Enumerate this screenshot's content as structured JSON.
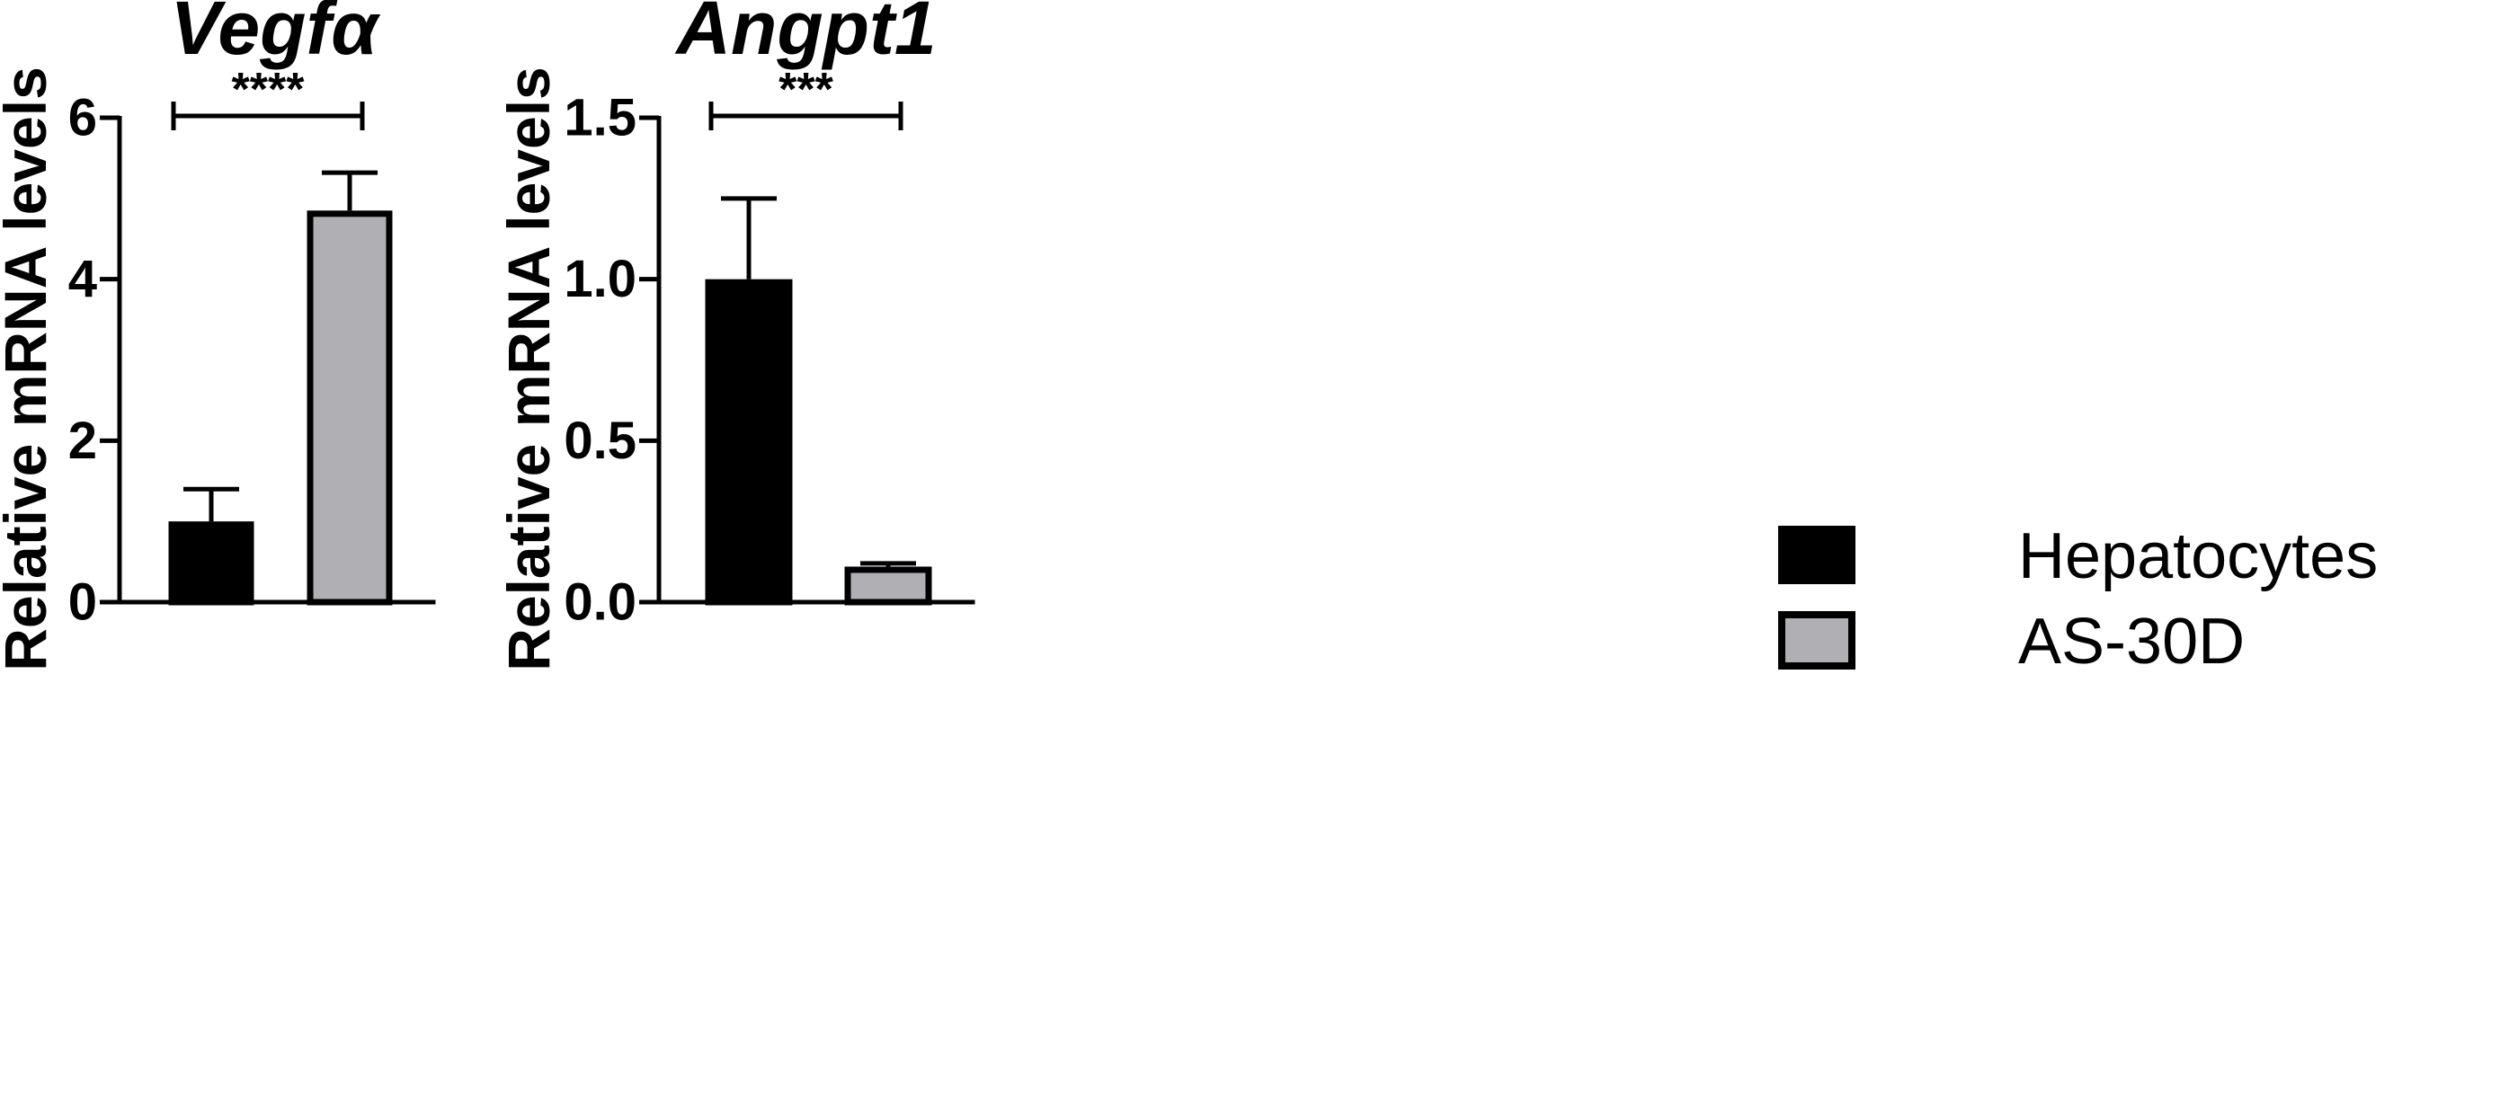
{
  "colors": {
    "Hepatocytes": "#000000",
    "AS-30D": "#b0b0b4",
    "axis": "#000000"
  },
  "legend": {
    "placement": "right",
    "items": [
      {
        "label": "Hepatocytes",
        "color": "#000000"
      },
      {
        "label": "AS-30D",
        "color": "#b0b0b4"
      }
    ]
  },
  "chart_data": [
    {
      "type": "bar",
      "title": "Vegfα",
      "xlabel": "",
      "ylabel": "Relative mRNA levels",
      "ylim": [
        0,
        6
      ],
      "yticks": [
        0,
        2,
        4,
        6
      ],
      "ytick_labels": [
        "0",
        "2",
        "4",
        "6"
      ],
      "categories": [
        "Hepatocytes",
        "AS-30D"
      ],
      "values": [
        1.0,
        4.85
      ],
      "errors": [
        0.4,
        0.47
      ],
      "significance": {
        "label": "****",
        "between": [
          "Hepatocytes",
          "AS-30D"
        ],
        "y": 6
      }
    },
    {
      "type": "bar",
      "title": "Angpt1",
      "xlabel": "",
      "ylabel": "Relative mRNA levels",
      "ylim": [
        0,
        1.5
      ],
      "yticks": [
        0,
        0.5,
        1.0,
        1.5
      ],
      "ytick_labels": [
        "0.0",
        "0.5",
        "1.0",
        "1.5"
      ],
      "categories": [
        "Hepatocytes",
        "AS-30D"
      ],
      "values": [
        1.0,
        0.11
      ],
      "errors": [
        0.25,
        0.01
      ],
      "significance": {
        "label": "***",
        "between": [
          "Hepatocytes",
          "AS-30D"
        ],
        "y": 1.5
      }
    }
  ]
}
